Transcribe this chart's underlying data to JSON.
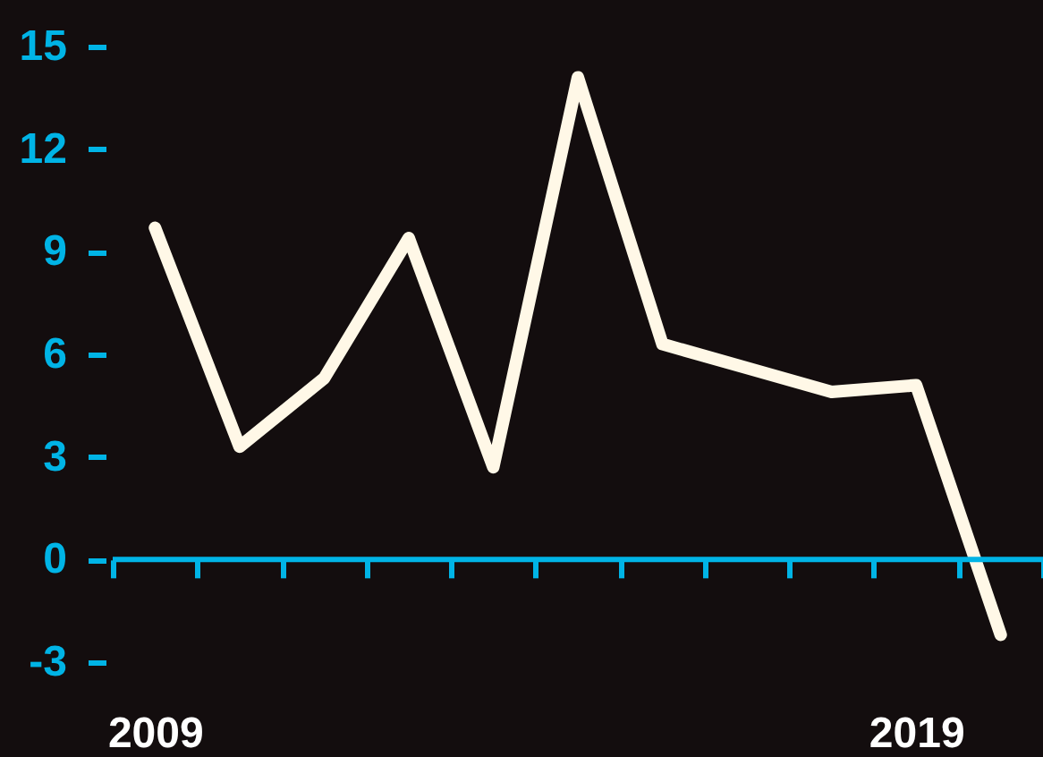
{
  "chart_data": {
    "type": "line",
    "categories": [
      "2009",
      null,
      null,
      null,
      null,
      null,
      null,
      null,
      null,
      "2019",
      null
    ],
    "series": [
      {
        "color": "#fff8e7",
        "values": [
          9.7,
          3.3,
          5.3,
          9.4,
          2.7,
          14.1,
          6.3,
          5.6,
          4.9,
          5.1,
          -2.2
        ]
      }
    ],
    "ylim": [
      -3,
      15
    ],
    "yticks": [
      -3,
      0,
      3,
      6,
      9,
      12,
      15
    ],
    "ref_lines": [
      {
        "axis": "y",
        "value": 0,
        "label": null,
        "color": "#00b4e6"
      }
    ],
    "grid": false,
    "marker": "none",
    "line_style": "solid"
  }
}
